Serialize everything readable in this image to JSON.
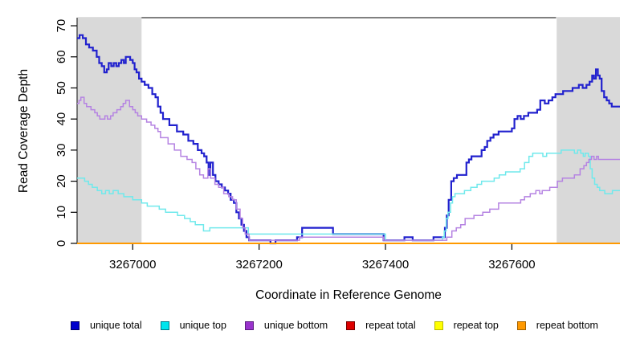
{
  "chart_data": {
    "type": "line",
    "title": "",
    "xlabel": "Coordinate in Reference Genome",
    "ylabel": "Read Coverage Depth",
    "xlim": [
      3266912,
      3267771
    ],
    "ylim": [
      0,
      72.6
    ],
    "x_ticks": [
      3267000,
      3267200,
      3267400,
      3267600
    ],
    "y_ticks": [
      0,
      10,
      20,
      30,
      40,
      50,
      60,
      70
    ],
    "grid": false,
    "legend_position": "bottom",
    "background_color": "#ffffff",
    "shaded_regions": [
      {
        "from": 3266912,
        "to": 3267014,
        "color": "#D9D9D9"
      },
      {
        "from": 3267670,
        "to": 3267771,
        "color": "#D9D9D9"
      }
    ],
    "series": [
      {
        "name": "unique total",
        "line_color": "#2121CE",
        "line_width": 2.2,
        "legend_fill": "#0000CC",
        "legend_border": "#000066",
        "points": [
          [
            3266912,
            66
          ],
          [
            3266916,
            67
          ],
          [
            3266921,
            66
          ],
          [
            3266926,
            64
          ],
          [
            3266931,
            63
          ],
          [
            3266937,
            62
          ],
          [
            3266943,
            60
          ],
          [
            3266947,
            58
          ],
          [
            3266951,
            57
          ],
          [
            3266955,
            55
          ],
          [
            3266959,
            56
          ],
          [
            3266962,
            58
          ],
          [
            3266966,
            57
          ],
          [
            3266970,
            58
          ],
          [
            3266974,
            57
          ],
          [
            3266978,
            58
          ],
          [
            3266982,
            59
          ],
          [
            3266986,
            58
          ],
          [
            3266989,
            60
          ],
          [
            3266996,
            59
          ],
          [
            3267000,
            58
          ],
          [
            3267003,
            56
          ],
          [
            3267006,
            55
          ],
          [
            3267010,
            53
          ],
          [
            3267014,
            52
          ],
          [
            3267019,
            51
          ],
          [
            3267025,
            50
          ],
          [
            3267031,
            48
          ],
          [
            3267036,
            47
          ],
          [
            3267040,
            44
          ],
          [
            3267044,
            42
          ],
          [
            3267048,
            40
          ],
          [
            3267058,
            38
          ],
          [
            3267070,
            36
          ],
          [
            3267080,
            35
          ],
          [
            3267088,
            33
          ],
          [
            3267096,
            32
          ],
          [
            3267103,
            30
          ],
          [
            3267109,
            29
          ],
          [
            3267113,
            28
          ],
          [
            3267117,
            26
          ],
          [
            3267120,
            22
          ],
          [
            3267123,
            26
          ],
          [
            3267127,
            22
          ],
          [
            3267131,
            20
          ],
          [
            3267136,
            19
          ],
          [
            3267141,
            18
          ],
          [
            3267146,
            17
          ],
          [
            3267151,
            16
          ],
          [
            3267155,
            14
          ],
          [
            3267160,
            13
          ],
          [
            3267164,
            10
          ],
          [
            3267168,
            8
          ],
          [
            3267172,
            6
          ],
          [
            3267176,
            4
          ],
          [
            3267180,
            2
          ],
          [
            3267184,
            1
          ],
          [
            3267218,
            0
          ],
          [
            3267226,
            1
          ],
          [
            3267260,
            2
          ],
          [
            3267268,
            5
          ],
          [
            3267317,
            3
          ],
          [
            3267397,
            1
          ],
          [
            3267430,
            2
          ],
          [
            3267443,
            1
          ],
          [
            3267476,
            2
          ],
          [
            3267494,
            5
          ],
          [
            3267497,
            9
          ],
          [
            3267500,
            14
          ],
          [
            3267504,
            20
          ],
          [
            3267508,
            21
          ],
          [
            3267513,
            22
          ],
          [
            3267528,
            26
          ],
          [
            3267532,
            27
          ],
          [
            3267536,
            28
          ],
          [
            3267552,
            30
          ],
          [
            3267557,
            31
          ],
          [
            3267561,
            33
          ],
          [
            3267566,
            34
          ],
          [
            3267571,
            35
          ],
          [
            3267579,
            36
          ],
          [
            3267600,
            37
          ],
          [
            3267604,
            40
          ],
          [
            3267609,
            41
          ],
          [
            3267614,
            40
          ],
          [
            3267619,
            41
          ],
          [
            3267626,
            42
          ],
          [
            3267640,
            43
          ],
          [
            3267645,
            46
          ],
          [
            3267652,
            45
          ],
          [
            3267658,
            46
          ],
          [
            3267664,
            47
          ],
          [
            3267669,
            48
          ],
          [
            3267681,
            49
          ],
          [
            3267696,
            50
          ],
          [
            3267706,
            51
          ],
          [
            3267712,
            50
          ],
          [
            3267718,
            51
          ],
          [
            3267723,
            52
          ],
          [
            3267727,
            54
          ],
          [
            3267730,
            53
          ],
          [
            3267733,
            56
          ],
          [
            3267736,
            54
          ],
          [
            3267739,
            53
          ],
          [
            3267742,
            49
          ],
          [
            3267746,
            47
          ],
          [
            3267750,
            46
          ],
          [
            3267754,
            45
          ],
          [
            3267758,
            44
          ],
          [
            3267771,
            44
          ]
        ]
      },
      {
        "name": "unique top",
        "line_color": "#70E9EC",
        "line_width": 1.5,
        "legend_fill": "#00E5EE",
        "legend_border": "#007A8A",
        "points": [
          [
            3266912,
            21
          ],
          [
            3266924,
            20
          ],
          [
            3266930,
            19
          ],
          [
            3266936,
            18
          ],
          [
            3266944,
            17
          ],
          [
            3266951,
            16
          ],
          [
            3266957,
            17
          ],
          [
            3266963,
            16
          ],
          [
            3266969,
            17
          ],
          [
            3266977,
            16
          ],
          [
            3266986,
            15
          ],
          [
            3267000,
            14
          ],
          [
            3267014,
            13
          ],
          [
            3267023,
            12
          ],
          [
            3267042,
            11
          ],
          [
            3267052,
            10
          ],
          [
            3267071,
            9
          ],
          [
            3267082,
            8
          ],
          [
            3267091,
            7
          ],
          [
            3267099,
            6
          ],
          [
            3267112,
            4
          ],
          [
            3267122,
            5
          ],
          [
            3267183,
            3
          ],
          [
            3267400,
            1
          ],
          [
            3267490,
            2
          ],
          [
            3267493,
            4
          ],
          [
            3267496,
            8
          ],
          [
            3267499,
            10
          ],
          [
            3267503,
            13
          ],
          [
            3267506,
            15
          ],
          [
            3267510,
            16
          ],
          [
            3267525,
            17
          ],
          [
            3267535,
            18
          ],
          [
            3267545,
            19
          ],
          [
            3267552,
            20
          ],
          [
            3267572,
            21
          ],
          [
            3267580,
            22
          ],
          [
            3267590,
            23
          ],
          [
            3267613,
            24
          ],
          [
            3267620,
            26
          ],
          [
            3267627,
            28
          ],
          [
            3267633,
            29
          ],
          [
            3267649,
            28
          ],
          [
            3267655,
            29
          ],
          [
            3267678,
            30
          ],
          [
            3267699,
            29
          ],
          [
            3267704,
            30
          ],
          [
            3267709,
            29
          ],
          [
            3267713,
            28
          ],
          [
            3267716,
            29
          ],
          [
            3267721,
            28
          ],
          [
            3267724,
            24
          ],
          [
            3267727,
            21
          ],
          [
            3267731,
            19
          ],
          [
            3267735,
            18
          ],
          [
            3267739,
            17
          ],
          [
            3267747,
            16
          ],
          [
            3267759,
            17
          ],
          [
            3267771,
            17
          ]
        ]
      },
      {
        "name": "unique bottom",
        "line_color": "#B583E2",
        "line_width": 1.5,
        "legend_fill": "#9933CC",
        "legend_border": "#5C1E80",
        "points": [
          [
            3266912,
            45
          ],
          [
            3266915,
            46
          ],
          [
            3266918,
            47
          ],
          [
            3266923,
            45
          ],
          [
            3266927,
            44
          ],
          [
            3266934,
            43
          ],
          [
            3266940,
            42
          ],
          [
            3266944,
            41
          ],
          [
            3266948,
            40
          ],
          [
            3266956,
            41
          ],
          [
            3266960,
            40
          ],
          [
            3266965,
            41
          ],
          [
            3266969,
            42
          ],
          [
            3266975,
            43
          ],
          [
            3266981,
            44
          ],
          [
            3266985,
            45
          ],
          [
            3266989,
            46
          ],
          [
            3266995,
            44
          ],
          [
            3267000,
            43
          ],
          [
            3267004,
            42
          ],
          [
            3267008,
            41
          ],
          [
            3267014,
            40
          ],
          [
            3267022,
            39
          ],
          [
            3267029,
            38
          ],
          [
            3267035,
            37
          ],
          [
            3267040,
            36
          ],
          [
            3267044,
            34
          ],
          [
            3267056,
            32
          ],
          [
            3267066,
            30
          ],
          [
            3267076,
            28
          ],
          [
            3267086,
            27
          ],
          [
            3267094,
            26
          ],
          [
            3267100,
            24
          ],
          [
            3267106,
            22
          ],
          [
            3267112,
            21
          ],
          [
            3267119,
            24
          ],
          [
            3267123,
            21
          ],
          [
            3267130,
            19
          ],
          [
            3267136,
            18
          ],
          [
            3267144,
            16
          ],
          [
            3267152,
            15
          ],
          [
            3267158,
            14
          ],
          [
            3267164,
            11
          ],
          [
            3267170,
            8
          ],
          [
            3267174,
            5
          ],
          [
            3267178,
            3
          ],
          [
            3267184,
            1
          ],
          [
            3267264,
            2
          ],
          [
            3267397,
            1
          ],
          [
            3267497,
            2
          ],
          [
            3267505,
            4
          ],
          [
            3267512,
            5
          ],
          [
            3267519,
            6
          ],
          [
            3267526,
            8
          ],
          [
            3267540,
            9
          ],
          [
            3267554,
            10
          ],
          [
            3267565,
            11
          ],
          [
            3267579,
            13
          ],
          [
            3267614,
            14
          ],
          [
            3267620,
            15
          ],
          [
            3267629,
            16
          ],
          [
            3267638,
            17
          ],
          [
            3267644,
            16
          ],
          [
            3267648,
            17
          ],
          [
            3267660,
            18
          ],
          [
            3267672,
            20
          ],
          [
            3267680,
            21
          ],
          [
            3267699,
            22
          ],
          [
            3267708,
            24
          ],
          [
            3267714,
            25
          ],
          [
            3267718,
            26
          ],
          [
            3267722,
            27
          ],
          [
            3267726,
            28
          ],
          [
            3267730,
            27
          ],
          [
            3267734,
            28
          ],
          [
            3267737,
            27
          ],
          [
            3267771,
            27
          ]
        ]
      },
      {
        "name": "repeat total",
        "line_color": "#DD0000",
        "line_width": 1.5,
        "legend_fill": "#DD0000",
        "legend_border": "#7A0000",
        "points": [
          [
            3266912,
            0
          ],
          [
            3267771,
            0
          ]
        ]
      },
      {
        "name": "repeat top",
        "line_color": "#FFFF33",
        "line_width": 1.5,
        "legend_fill": "#FFFF00",
        "legend_border": "#B8B800",
        "points": [
          [
            3266912,
            0
          ],
          [
            3267771,
            0
          ]
        ]
      },
      {
        "name": "repeat bottom",
        "line_color": "#FF9900",
        "line_width": 2,
        "legend_fill": "#FF9900",
        "legend_border": "#A36200",
        "points": [
          [
            3266912,
            0
          ],
          [
            3267771,
            0
          ]
        ]
      }
    ]
  }
}
